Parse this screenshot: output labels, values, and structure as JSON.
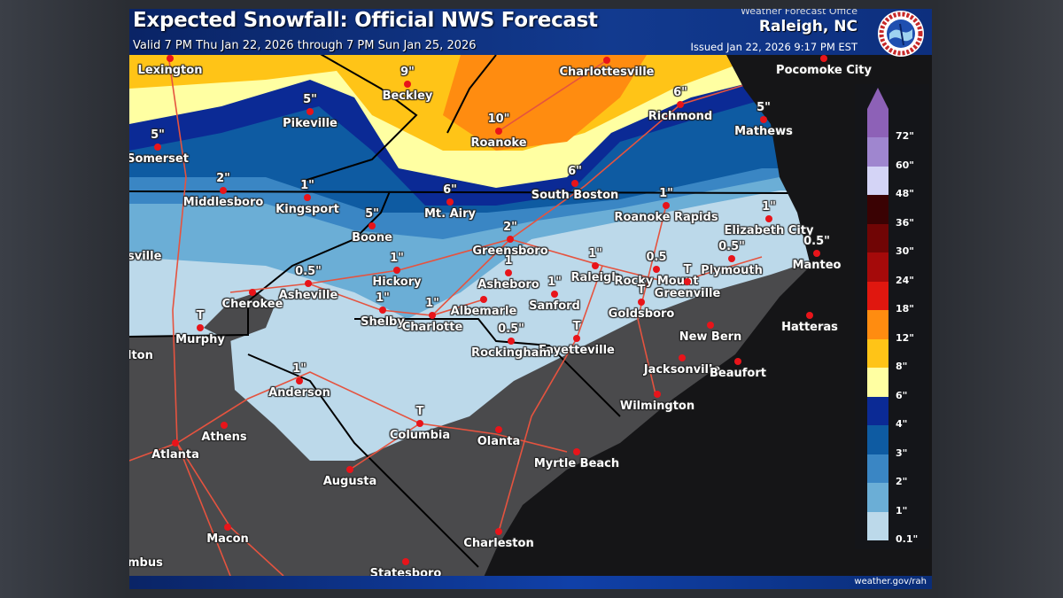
{
  "header": {
    "title": "Expected Snowfall: Official NWS Forecast",
    "valid": "Valid 7 PM Thu Jan 22, 2026 through 7 PM Sun Jan 25, 2026",
    "office_label": "Weather Forecast Office",
    "office": "Raleigh, NC",
    "issued": "Issued Jan 22, 2026 9:17 PM EST",
    "logo": "NOAA National Weather Service"
  },
  "footer": {
    "url": "weather.gov/rah"
  },
  "legend": {
    "units": "inches",
    "bins": [
      {
        "label": "0.1\"",
        "color": "#bcd9ea"
      },
      {
        "label": "1\"",
        "color": "#6baed6"
      },
      {
        "label": "2\"",
        "color": "#3a86c4"
      },
      {
        "label": "3\"",
        "color": "#0e5ba2"
      },
      {
        "label": "4\"",
        "color": "#0b2a95"
      },
      {
        "label": "6\"",
        "color": "#ffffa2"
      },
      {
        "label": "8\"",
        "color": "#ffc417"
      },
      {
        "label": "12\"",
        "color": "#ff8c10"
      },
      {
        "label": "18\"",
        "color": "#e0170f"
      },
      {
        "label": "24\"",
        "color": "#a50a0a"
      },
      {
        "label": "30\"",
        "color": "#700505"
      },
      {
        "label": "36\"",
        "color": "#3a0203"
      },
      {
        "label": "48\"",
        "color": "#d4d4f6"
      },
      {
        "label": "60\"",
        "color": "#9f86cf"
      },
      {
        "label": "72\"",
        "color": "#8d61b7"
      }
    ]
  },
  "map_colors": {
    "no_snow_land": "#4a4a4c",
    "water": "#151517",
    "roads": "#e5533f",
    "cities": "#e8141a"
  },
  "cities": [
    {
      "name": "Lexington",
      "amount": ""
    },
    {
      "name": "Beckley",
      "amount": "9\""
    },
    {
      "name": "Charlottesville",
      "amount": ""
    },
    {
      "name": "Pikeville",
      "amount": "5\""
    },
    {
      "name": "Somerset",
      "amount": "5\""
    },
    {
      "name": "Roanoke",
      "amount": "10\""
    },
    {
      "name": "Richmond",
      "amount": "6\""
    },
    {
      "name": "Mathews",
      "amount": "5\""
    },
    {
      "name": "Pocomoke City",
      "amount": ""
    },
    {
      "name": "Middlesboro",
      "amount": "2\""
    },
    {
      "name": "Kingsport",
      "amount": "1\""
    },
    {
      "name": "Mt. Airy",
      "amount": "6\""
    },
    {
      "name": "Boone",
      "amount": "5\""
    },
    {
      "name": "South Boston",
      "amount": "6\""
    },
    {
      "name": "Roanoke Rapids",
      "amount": "1\""
    },
    {
      "name": "Elizabeth City",
      "amount": "1\""
    },
    {
      "name": "Greensboro",
      "amount": "2\""
    },
    {
      "name": "Asheville",
      "amount": "0.5\""
    },
    {
      "name": "Hickory",
      "amount": "1\""
    },
    {
      "name": "Cherokee",
      "amount": ""
    },
    {
      "name": "Murphy",
      "amount": "T"
    },
    {
      "name": "Shelby",
      "amount": "1\""
    },
    {
      "name": "Charlotte",
      "amount": "1\""
    },
    {
      "name": "Albemarle",
      "amount": ""
    },
    {
      "name": "Asheboro",
      "amount": "1"
    },
    {
      "name": "Raleigh",
      "amount": "1\""
    },
    {
      "name": "Sanford",
      "amount": "1\""
    },
    {
      "name": "Rocky Mount",
      "amount": "0.5"
    },
    {
      "name": "Greenville",
      "amount": "T"
    },
    {
      "name": "Plymouth",
      "amount": "0.5\""
    },
    {
      "name": "Manteo",
      "amount": "0.5\""
    },
    {
      "name": "Goldsboro",
      "amount": "T"
    },
    {
      "name": "Fayetteville",
      "amount": "T"
    },
    {
      "name": "Rockingham",
      "amount": "0.5\""
    },
    {
      "name": "Hatteras",
      "amount": ""
    },
    {
      "name": "New Bern",
      "amount": ""
    },
    {
      "name": "Jacksonville",
      "amount": ""
    },
    {
      "name": "Beaufort",
      "amount": ""
    },
    {
      "name": "Wilmington",
      "amount": ""
    },
    {
      "name": "Anderson",
      "amount": "1\""
    },
    {
      "name": "Columbia",
      "amount": "T"
    },
    {
      "name": "Athens",
      "amount": ""
    },
    {
      "name": "Atlanta",
      "amount": ""
    },
    {
      "name": "Augusta",
      "amount": ""
    },
    {
      "name": "Olanta",
      "amount": ""
    },
    {
      "name": "Myrtle Beach",
      "amount": ""
    },
    {
      "name": "Charleston",
      "amount": ""
    },
    {
      "name": "Macon",
      "amount": ""
    },
    {
      "name": "Statesboro",
      "amount": ""
    },
    {
      "name": "sville",
      "amount": ""
    },
    {
      "name": "lton",
      "amount": ""
    },
    {
      "name": "mbus",
      "amount": ""
    }
  ]
}
